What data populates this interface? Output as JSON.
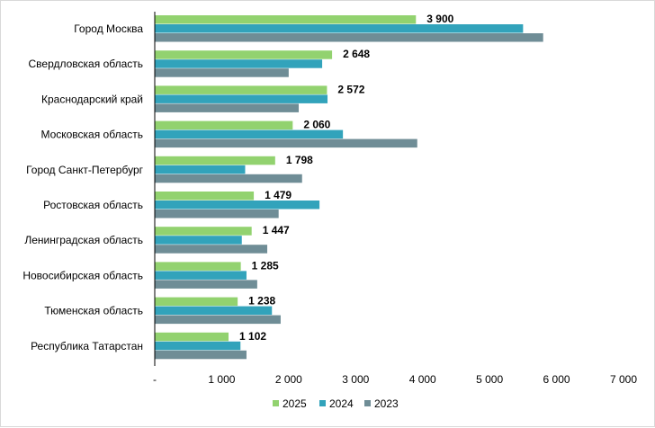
{
  "chart_data": {
    "type": "bar",
    "orientation": "horizontal",
    "title": "",
    "xlabel": "",
    "ylabel": "",
    "xlim": [
      0,
      7000
    ],
    "x_ticks": [
      0,
      1000,
      2000,
      3000,
      4000,
      5000,
      6000,
      7000
    ],
    "x_tick_labels": [
      "-",
      "1 000",
      "2 000",
      "3 000",
      "4 000",
      "5 000",
      "6 000",
      "7 000"
    ],
    "grid": false,
    "legend_position": "bottom",
    "categories": [
      "Город Москва",
      "Свердловская область",
      "Краснодарский край",
      "Московская область",
      "Город Санкт-Петербург",
      "Ростовская область",
      "Ленинградская область",
      "Новосибирская область",
      "Тюменская область",
      "Республика Татарстан"
    ],
    "series": [
      {
        "name": "2025",
        "color": "#92d26f",
        "values": [
          3900,
          2648,
          2572,
          2060,
          1798,
          1479,
          1447,
          1285,
          1238,
          1102
        ],
        "data_labels": [
          "3 900",
          "2 648",
          "2 572",
          "2 060",
          "1 798",
          "1 479",
          "1 447",
          "1 285",
          "1 238",
          "1 102"
        ]
      },
      {
        "name": "2024",
        "color": "#32a3bb",
        "values": [
          5500,
          2500,
          2580,
          2810,
          1350,
          2460,
          1300,
          1370,
          1750,
          1280
        ]
      },
      {
        "name": "2023",
        "color": "#6f8d96",
        "values": [
          5800,
          2000,
          2150,
          3920,
          2200,
          1850,
          1680,
          1530,
          1880,
          1370
        ]
      }
    ]
  }
}
